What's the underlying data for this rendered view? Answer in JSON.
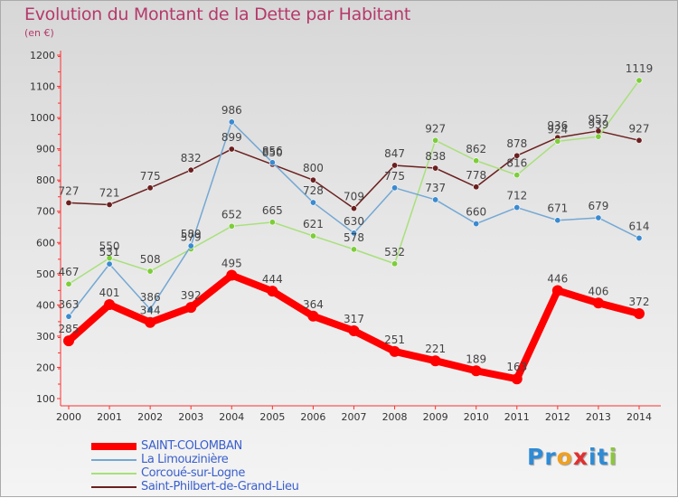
{
  "title": "Evolution du Montant de la Dette par Habitant",
  "subtitle": "(en €)",
  "logo": {
    "letters": [
      "P",
      "r",
      "o",
      "x",
      "i",
      "t",
      "i"
    ],
    "colors": [
      "#2e8bd6",
      "#2e8bd6",
      "#f0a020",
      "#e03030",
      "#2e8bd6",
      "#2e8bd6",
      "#8cc63f"
    ]
  },
  "chart_data": {
    "type": "line",
    "title": "Evolution du Montant de la Dette par Habitant",
    "ylabel": "(en €)",
    "xlabel": "",
    "x": [
      "2000",
      "2001",
      "2002",
      "2003",
      "2004",
      "2005",
      "2006",
      "2007",
      "2008",
      "2009",
      "2010",
      "2011",
      "2012",
      "2013",
      "2014"
    ],
    "ylim": [
      100,
      1200
    ],
    "yticks": [
      "100",
      "200",
      "300",
      "400",
      "500",
      "600",
      "700",
      "800",
      "900",
      "1000",
      "1100",
      "1200"
    ],
    "grid": "none",
    "legend_position": "bottom-left",
    "series": [
      {
        "name": "Saint-Philbert-de-Grand-Lieu",
        "color": "#6b1f1f",
        "marker": "#6b1f1f",
        "values": [
          727,
          721,
          775,
          832,
          899,
          850,
          800,
          709,
          847,
          838,
          778,
          878,
          936,
          957,
          927
        ],
        "labels": [
          "727",
          "721",
          "775",
          "832",
          "899",
          "850",
          "800",
          "709",
          "847",
          "838",
          "778",
          "878",
          "936",
          "957",
          "927"
        ]
      },
      {
        "name": "Corcoué-sur-Logne",
        "color": "#a8e07a",
        "marker": "#7dcd3a",
        "values": [
          467,
          550,
          508,
          579,
          652,
          665,
          621,
          578,
          532,
          927,
          862,
          816,
          924,
          939,
          1119
        ],
        "labels": [
          "467",
          "550",
          "508",
          "579",
          "652",
          "665",
          "621",
          "578",
          "532",
          "927",
          "862",
          "816",
          "924",
          "939",
          "1119"
        ]
      },
      {
        "name": "La Limouzinière",
        "color": "#74a8d4",
        "marker": "#3a8ad0",
        "values": [
          363,
          531,
          386,
          589,
          986,
          856,
          728,
          630,
          775,
          737,
          660,
          712,
          671,
          679,
          614
        ],
        "labels": [
          "363",
          "531",
          "386",
          "589",
          "986",
          "856",
          "728",
          "630",
          "775",
          "737",
          "660",
          "712",
          "671",
          "679",
          "614"
        ]
      },
      {
        "name": "SAINT-COLOMBAN",
        "color": "#ff0000",
        "marker": "#ff0000",
        "values": [
          285,
          401,
          344,
          392,
          495,
          444,
          364,
          317,
          251,
          221,
          189,
          163,
          446,
          406,
          372
        ],
        "labels": [
          "285",
          "401",
          "344",
          "392",
          "495",
          "444",
          "364",
          "317",
          "251",
          "221",
          "189",
          "163",
          "446",
          "406",
          "372"
        ]
      }
    ],
    "legend": [
      {
        "name": "SAINT-COLOMBAN",
        "color": "#ff0000",
        "thick": true
      },
      {
        "name": "La Limouzinière",
        "color": "#74a8d4",
        "thick": false
      },
      {
        "name": "Corcoué-sur-Logne",
        "color": "#a8e07a",
        "thick": false
      },
      {
        "name": "Saint-Philbert-de-Grand-Lieu",
        "color": "#6b1f1f",
        "thick": false
      }
    ]
  }
}
